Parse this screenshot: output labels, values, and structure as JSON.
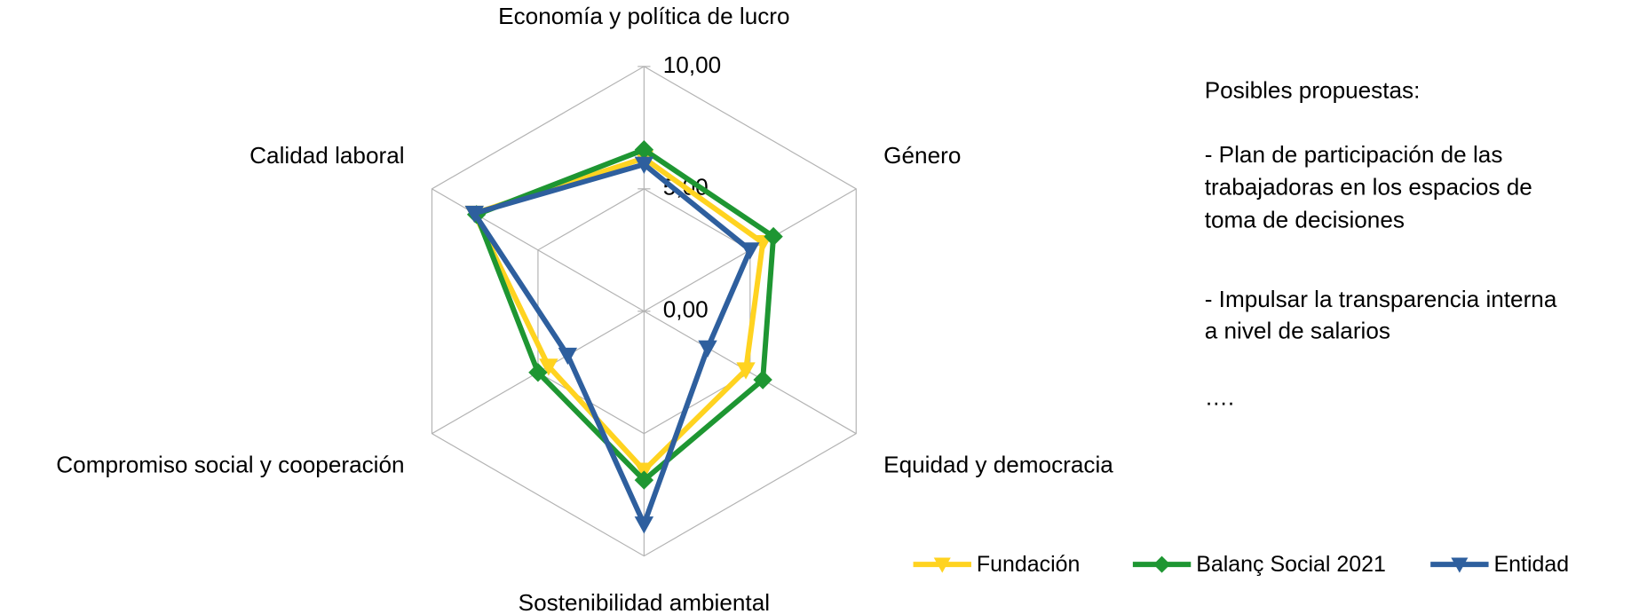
{
  "chart_data": {
    "type": "radar",
    "categories": [
      "Economía y política de lucro",
      "Género",
      "Equidad y democracia",
      "Sostenibilidad ambiental",
      "Compromiso social y cooperación",
      "Calidad laboral"
    ],
    "series": [
      {
        "name": "Fundación",
        "color": "#ffd320",
        "marker": "triangle-down",
        "values": [
          6.25,
          5.6,
          4.8,
          6.5,
          4.5,
          8.0
        ]
      },
      {
        "name": "Balanç Social 2021",
        "color": "#1e9632",
        "marker": "diamond",
        "values": [
          6.6,
          6.1,
          5.6,
          6.9,
          5.0,
          7.9
        ]
      },
      {
        "name": "Entidad",
        "color": "#2e5f9e",
        "marker": "triangle-down",
        "values": [
          6.0,
          5.0,
          3.0,
          8.7,
          3.6,
          8.0
        ]
      }
    ],
    "rlim": [
      0,
      10
    ],
    "rticks": [
      {
        "value": 0,
        "label": "0,00"
      },
      {
        "value": 5,
        "label": "5,00"
      },
      {
        "value": 10,
        "label": "10,00"
      }
    ],
    "grid": true,
    "legend": "bottom-right",
    "annotations": [
      "Posibles propuestas:",
      "- Plan de participación de las",
      "trabajadoras en los espacios de",
      "toma de decisiones",
      "- Impulsar la transparencia interna",
      "a nivel de salarios",
      "…."
    ]
  }
}
